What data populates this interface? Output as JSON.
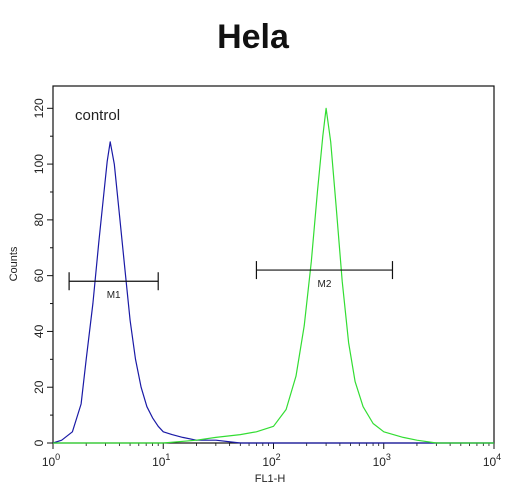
{
  "chart_data": {
    "type": "line",
    "title": "Hela",
    "xlabel": "FL1-H",
    "ylabel": "Counts",
    "x_scale": "log",
    "xlim": [
      1,
      10000
    ],
    "ylim": [
      0,
      128
    ],
    "y_ticks": [
      0,
      20,
      40,
      60,
      80,
      100,
      120
    ],
    "x_ticks": [
      {
        "value": 1,
        "base": "10",
        "exp": "0"
      },
      {
        "value": 10,
        "base": "10",
        "exp": "1"
      },
      {
        "value": 100,
        "base": "10",
        "exp": "2"
      },
      {
        "value": 1000,
        "base": "10",
        "exp": "3"
      },
      {
        "value": 10000,
        "base": "10",
        "exp": "4"
      }
    ],
    "grid": false,
    "annotation": "control",
    "series": [
      {
        "color": "#1a1aa6",
        "x": [
          1.0,
          1.2,
          1.5,
          1.8,
          2.0,
          2.3,
          2.6,
          2.9,
          3.1,
          3.3,
          3.6,
          4.0,
          4.5,
          5.0,
          5.6,
          6.3,
          7.1,
          8.0,
          9.0,
          10,
          12,
          15,
          20,
          30,
          50,
          100,
          1000,
          10000
        ],
        "y": [
          0,
          1,
          4,
          14,
          30,
          50,
          72,
          90,
          101,
          108,
          100,
          82,
          62,
          44,
          30,
          20,
          13,
          9,
          6,
          4,
          3,
          2,
          1,
          1,
          0,
          0,
          0,
          0
        ]
      },
      {
        "color": "#33dd33",
        "x": [
          1.0,
          10,
          20,
          30,
          50,
          70,
          100,
          130,
          160,
          190,
          220,
          250,
          280,
          300,
          330,
          370,
          420,
          480,
          550,
          650,
          800,
          1000,
          1500,
          2000,
          3000,
          10000
        ],
        "y": [
          0,
          0,
          1,
          2,
          3,
          4,
          6,
          12,
          24,
          42,
          65,
          90,
          110,
          120,
          108,
          85,
          58,
          36,
          22,
          13,
          7,
          4,
          2,
          1,
          0,
          0
        ]
      }
    ],
    "gates": [
      {
        "label": "M1",
        "x_start": 1.4,
        "x_end": 9.0,
        "y": 58
      },
      {
        "label": "M2",
        "x_start": 70,
        "x_end": 1200,
        "y": 62
      }
    ]
  }
}
